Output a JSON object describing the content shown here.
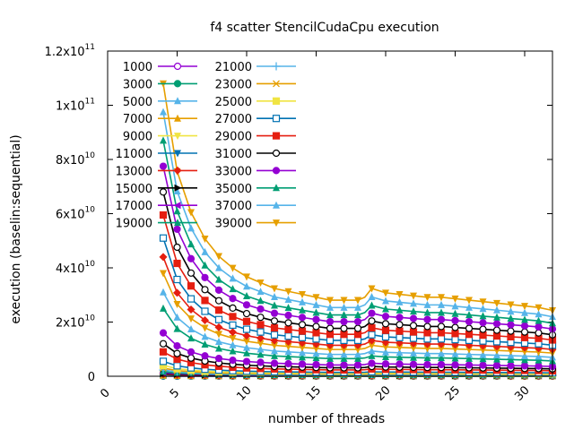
{
  "chart_data": {
    "type": "line",
    "title": "f4 scatter StencilCudaCpu execution",
    "xlabel": "number of threads",
    "ylabel": "execution (baselin:sequential)",
    "xlim": [
      0,
      32
    ],
    "ylim": [
      0,
      120000000000
    ],
    "xticks": [
      {
        "v": 0,
        "label": "0"
      },
      {
        "v": 5,
        "label": "5"
      },
      {
        "v": 10,
        "label": "10"
      },
      {
        "v": 15,
        "label": "15"
      },
      {
        "v": 20,
        "label": "20"
      },
      {
        "v": 25,
        "label": "25"
      },
      {
        "v": 30,
        "label": "30"
      }
    ],
    "yticks": [
      {
        "v": 0,
        "m": "0",
        "e": ""
      },
      {
        "v": 20000000000,
        "m": "2x10",
        "e": "10"
      },
      {
        "v": 40000000000,
        "m": "4x10",
        "e": "10"
      },
      {
        "v": 60000000000,
        "m": "6x10",
        "e": "10"
      },
      {
        "v": 80000000000,
        "m": "8x10",
        "e": "10"
      },
      {
        "v": 100000000000,
        "m": "1x10",
        "e": "11"
      },
      {
        "v": 120000000000,
        "m": "1.2x10",
        "e": "11"
      }
    ],
    "grid": false,
    "legend_position": "top-left",
    "x": [
      4,
      5,
      6,
      7,
      8,
      9,
      10,
      11,
      12,
      13,
      14,
      15,
      16,
      17,
      18,
      19,
      20,
      21,
      22,
      23,
      24,
      25,
      26,
      27,
      28,
      29,
      30,
      31,
      32
    ],
    "series": [
      {
        "name": "1000",
        "color": "#9400d3",
        "marker": "circle-open",
        "peak": 40000000
      },
      {
        "name": "3000",
        "color": "#009e73",
        "marker": "circle-filled",
        "peak": 80000000
      },
      {
        "name": "5000",
        "color": "#56b4e9",
        "marker": "triangle-up",
        "peak": 150000000
      },
      {
        "name": "7000",
        "color": "#e69f00",
        "marker": "triangle-up",
        "peak": 250000000
      },
      {
        "name": "9000",
        "color": "#f0e442",
        "marker": "triangle-down",
        "peak": 400000000
      },
      {
        "name": "11000",
        "color": "#0072b2",
        "marker": "triangle-down",
        "peak": 550000000
      },
      {
        "name": "13000",
        "color": "#e51e10",
        "marker": "diamond",
        "peak": 750000000
      },
      {
        "name": "15000",
        "color": "#000000",
        "marker": "triangle-right",
        "peak": 1000000000
      },
      {
        "name": "17000",
        "color": "#9400d3",
        "marker": "triangle-left",
        "peak": 1300000000
      },
      {
        "name": "19000",
        "color": "#009e73",
        "marker": "triangle-up",
        "peak": 1700000000
      },
      {
        "name": "21000",
        "color": "#56b4e9",
        "marker": "plus",
        "peak": 2300000000
      },
      {
        "name": "23000",
        "color": "#e69f00",
        "marker": "cross",
        "peak": 3000000000
      },
      {
        "name": "25000",
        "color": "#f0e442",
        "marker": "square-filled",
        "peak": 4000000000
      },
      {
        "name": "27000",
        "color": "#0072b2",
        "marker": "square-open",
        "peak": 5500000000
      },
      {
        "name": "29000",
        "color": "#e51e10",
        "marker": "square-filled",
        "peak": 9000000000
      },
      {
        "name": "31000",
        "color": "#000000",
        "marker": "circle-open",
        "peak": 12000000000
      },
      {
        "name": "33000",
        "color": "#9400d3",
        "marker": "circle-filled",
        "peak": 16000000000
      },
      {
        "name": "35000",
        "color": "#009e73",
        "marker": "triangle-up",
        "peak": 25000000000
      },
      {
        "name": "37000",
        "color": "#56b4e9",
        "marker": "triangle-up",
        "peak": 31000000000
      },
      {
        "name": "39000",
        "color": "#e69f00",
        "marker": "triangle-down",
        "peak": 38000000000
      },
      {
        "name": "",
        "color": "#e51e10",
        "marker": "diamond",
        "peak": 44000000000
      },
      {
        "name": "",
        "color": "#0072b2",
        "marker": "square-open",
        "peak": 51000000000
      },
      {
        "name": "",
        "color": "#e51e10",
        "marker": "square-filled",
        "peak": 59500000000
      },
      {
        "name": "",
        "color": "#000000",
        "marker": "circle-open",
        "peak": 68000000000
      },
      {
        "name": "",
        "color": "#9400d3",
        "marker": "circle-filled",
        "peak": 77500000000
      },
      {
        "name": "",
        "color": "#009e73",
        "marker": "triangle-up",
        "peak": 87000000000
      },
      {
        "name": "",
        "color": "#56b4e9",
        "marker": "triangle-up",
        "peak": 97500000000
      },
      {
        "name": "",
        "color": "#e69f00",
        "marker": "triangle-down",
        "peak": 108000000000
      }
    ],
    "shape": [
      1.0,
      0.7,
      0.56,
      0.47,
      0.41,
      0.37,
      0.34,
      0.32,
      0.3,
      0.29,
      0.28,
      0.27,
      0.26,
      0.26,
      0.26,
      0.27,
      0.3,
      0.285,
      0.28,
      0.275,
      0.27,
      0.27,
      0.265,
      0.26,
      0.255,
      0.25,
      0.245,
      0.24,
      0.235,
      0.225
    ],
    "shape_x": [
      4,
      5,
      6,
      7,
      8,
      9,
      10,
      11,
      12,
      13,
      14,
      15,
      16,
      17,
      18,
      18.5,
      19,
      20,
      21,
      22,
      23,
      24,
      25,
      26,
      27,
      28,
      29,
      30,
      31,
      32
    ]
  }
}
